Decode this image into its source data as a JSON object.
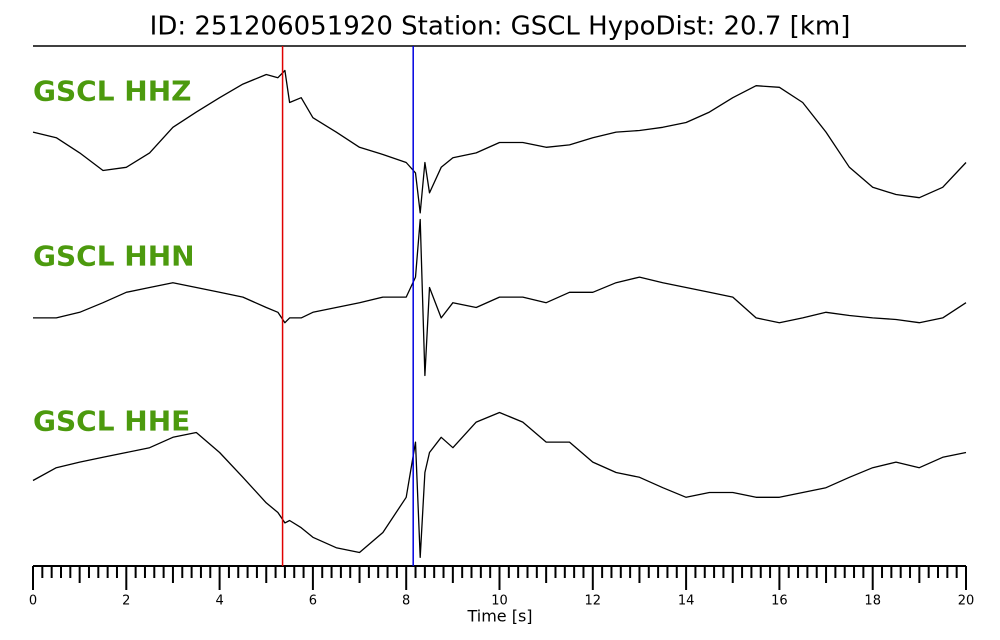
{
  "chart_data": {
    "type": "line",
    "title": "ID: 251206051920   Station: GSCL   HypoDist:    20.7 [km]",
    "xlabel": "Time [s]",
    "xlim": [
      0,
      20
    ],
    "xticks": [
      0,
      2,
      4,
      6,
      8,
      10,
      12,
      14,
      16,
      18,
      20
    ],
    "xminorticks": [
      0.2,
      0.4,
      0.6,
      0.8,
      1,
      1.2,
      1.4,
      1.6,
      1.8,
      2.2,
      2.4,
      2.6,
      2.8,
      3,
      3.2,
      3.4,
      3.6,
      3.8,
      4.2,
      4.4,
      4.6,
      4.8,
      5,
      5.2,
      5.4,
      5.6,
      5.8,
      6.2,
      6.4,
      6.6,
      6.8,
      7,
      7.2,
      7.4,
      7.6,
      7.8,
      8.2,
      8.4,
      8.6,
      8.8,
      9,
      9.2,
      9.4,
      9.6,
      9.8,
      10.2,
      10.4,
      10.6,
      10.8,
      11,
      11.2,
      11.4,
      11.6,
      11.8,
      12.2,
      12.4,
      12.6,
      12.8,
      13,
      13.2,
      13.4,
      13.6,
      13.8,
      14.2,
      14.4,
      14.6,
      14.8,
      15,
      15.2,
      15.4,
      15.6,
      15.8,
      16.2,
      16.4,
      16.6,
      16.8,
      17,
      17.2,
      17.4,
      17.6,
      17.8,
      18.2,
      18.4,
      18.6,
      18.8,
      19,
      19.2,
      19.4,
      19.6,
      19.8
    ],
    "ylim": [
      -1,
      1
    ],
    "label_color": "#4c9a0e",
    "markers": [
      {
        "x": 5.35,
        "color": "#e00000"
      },
      {
        "x": 8.15,
        "color": "#0000e0"
      }
    ],
    "x": [
      0,
      0.5,
      1,
      1.5,
      2,
      2.5,
      3,
      3.5,
      4,
      4.5,
      5,
      5.25,
      5.4,
      5.5,
      5.75,
      6,
      6.5,
      7,
      7.5,
      8,
      8.2,
      8.3,
      8.4,
      8.5,
      8.75,
      9,
      9.5,
      10,
      10.5,
      11,
      11.5,
      12,
      12.5,
      13,
      13.5,
      14,
      14.5,
      15,
      15.5,
      16,
      16.5,
      17,
      17.5,
      18,
      18.5,
      19,
      19.5,
      20
    ],
    "series": [
      {
        "name": "GSCL HHZ",
        "color": "#000000",
        "values": [
          0.13,
          0.06,
          -0.13,
          -0.35,
          -0.31,
          -0.13,
          0.19,
          0.38,
          0.56,
          0.73,
          0.85,
          0.81,
          0.9,
          0.5,
          0.56,
          0.31,
          0.13,
          -0.06,
          -0.15,
          -0.25,
          -0.38,
          -0.88,
          -0.25,
          -0.63,
          -0.31,
          -0.19,
          -0.13,
          0,
          0,
          -0.06,
          -0.03,
          0.06,
          0.13,
          0.15,
          0.19,
          0.25,
          0.38,
          0.56,
          0.71,
          0.69,
          0.5,
          0.13,
          -0.31,
          -0.56,
          -0.65,
          -0.69,
          -0.56,
          -0.25
        ]
      },
      {
        "name": "GSCL HHN",
        "color": "#000000",
        "values": [
          -0.13,
          -0.13,
          -0.06,
          0.06,
          0.19,
          0.25,
          0.31,
          0.25,
          0.19,
          0.13,
          0,
          -0.06,
          -0.19,
          -0.13,
          -0.13,
          -0.06,
          0,
          0.06,
          0.13,
          0.13,
          0.38,
          1.1,
          -0.85,
          0.25,
          -0.13,
          0.06,
          0,
          0.13,
          0.13,
          0.06,
          0.19,
          0.19,
          0.31,
          0.38,
          0.31,
          0.25,
          0.19,
          0.13,
          -0.13,
          -0.19,
          -0.13,
          -0.06,
          -0.1,
          -0.13,
          -0.15,
          -0.19,
          -0.13,
          0.06
        ]
      },
      {
        "name": "GSCL HHE",
        "color": "#000000",
        "values": [
          -0.1,
          0.06,
          0.13,
          0.19,
          0.25,
          0.31,
          0.44,
          0.5,
          0.25,
          -0.06,
          -0.38,
          -0.5,
          -0.63,
          -0.6,
          -0.69,
          -0.81,
          -0.94,
          -1.0,
          -0.75,
          -0.31,
          0.38,
          -1.06,
          0,
          0.25,
          0.44,
          0.31,
          0.63,
          0.75,
          0.63,
          0.38,
          0.38,
          0.13,
          0,
          -0.06,
          -0.19,
          -0.31,
          -0.25,
          -0.25,
          -0.31,
          -0.31,
          -0.25,
          -0.19,
          -0.06,
          0.06,
          0.13,
          0.06,
          0.19,
          0.25
        ]
      }
    ]
  }
}
